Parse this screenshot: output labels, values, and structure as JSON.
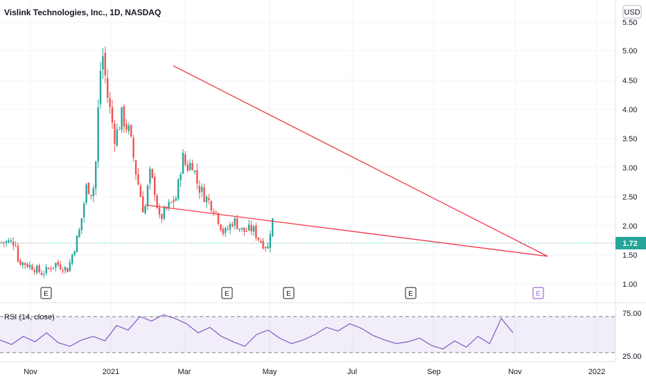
{
  "chart_data": {
    "type": "candlestick",
    "title": "Vislink Technologies, Inc., 1D, NASDAQ",
    "currency": "USD",
    "last_price": "1.72",
    "y_ticks": [
      "5.50",
      "5.00",
      "4.50",
      "4.00",
      "3.50",
      "3.00",
      "2.50",
      "2.00",
      "1.50",
      "1.00"
    ],
    "x_ticks": [
      "Nov",
      "2021",
      "Mar",
      "May",
      "Jul",
      "Sep",
      "Nov",
      "2022"
    ],
    "ylim": [
      0.9,
      5.6
    ],
    "earnings_markers": [
      "E",
      "E",
      "E",
      "E",
      "E"
    ],
    "colors": {
      "up": "#26a69a",
      "down": "#ef5350",
      "trendline": "#f23645",
      "rsi": "#7e57c2",
      "price_line": "#26a69a"
    },
    "price_path": [
      {
        "date": "2020-10-15",
        "close": 1.4
      },
      {
        "date": "2020-11-05",
        "close": 1.3
      },
      {
        "date": "2020-11-20",
        "close": 1.18
      },
      {
        "date": "2020-12-10",
        "close": 1.35
      },
      {
        "date": "2020-12-28",
        "close": 1.25
      },
      {
        "date": "2021-01-06",
        "close": 1.6
      },
      {
        "date": "2021-01-15",
        "close": 1.95
      },
      {
        "date": "2021-01-25",
        "close": 2.7
      },
      {
        "date": "2021-02-03",
        "close": 2.55
      },
      {
        "date": "2021-02-09",
        "close": 3.3
      },
      {
        "date": "2021-02-12",
        "close": 4.4
      },
      {
        "date": "2021-02-17",
        "close": 5.0
      },
      {
        "date": "2021-02-25",
        "close": 4.2
      },
      {
        "date": "2021-03-08",
        "close": 3.5
      },
      {
        "date": "2021-03-18",
        "close": 3.9
      },
      {
        "date": "2021-03-29",
        "close": 3.6
      },
      {
        "date": "2021-04-08",
        "close": 2.9
      },
      {
        "date": "2021-04-20",
        "close": 2.2
      },
      {
        "date": "2021-04-28",
        "close": 2.9
      },
      {
        "date": "2021-05-06",
        "close": 2.6
      },
      {
        "date": "2021-05-12",
        "close": 2.1
      },
      {
        "date": "2021-05-24",
        "close": 2.3
      },
      {
        "date": "2021-06-07",
        "close": 2.5
      },
      {
        "date": "2021-06-15",
        "close": 3.2
      },
      {
        "date": "2021-06-22",
        "close": 3.0
      },
      {
        "date": "2021-06-30",
        "close": 3.1
      },
      {
        "date": "2021-07-08",
        "close": 2.7
      },
      {
        "date": "2021-07-19",
        "close": 2.5
      },
      {
        "date": "2021-08-02",
        "close": 2.3
      },
      {
        "date": "2021-08-16",
        "close": 1.85
      },
      {
        "date": "2021-08-30",
        "close": 2.1
      },
      {
        "date": "2021-09-13",
        "close": 1.9
      },
      {
        "date": "2021-09-27",
        "close": 1.95
      },
      {
        "date": "2021-10-08",
        "close": 1.75
      },
      {
        "date": "2021-10-20",
        "close": 1.62
      },
      {
        "date": "2021-10-26",
        "close": 2.2
      },
      {
        "date": "2021-10-29",
        "close": 1.72
      }
    ],
    "rsi": {
      "label": "RSI (14, close)",
      "y_ticks": [
        "75.00",
        "25.00"
      ],
      "bands": [
        70,
        30
      ],
      "values": [
        44,
        39,
        48,
        42,
        52,
        41,
        37,
        44,
        48,
        43,
        60,
        55,
        70,
        65,
        72,
        68,
        62,
        52,
        58,
        48,
        42,
        37,
        50,
        55,
        46,
        40,
        44,
        50,
        58,
        54,
        62,
        57,
        49,
        44,
        40,
        42,
        46,
        38,
        34,
        43,
        36,
        48,
        40,
        68,
        52
      ]
    }
  }
}
